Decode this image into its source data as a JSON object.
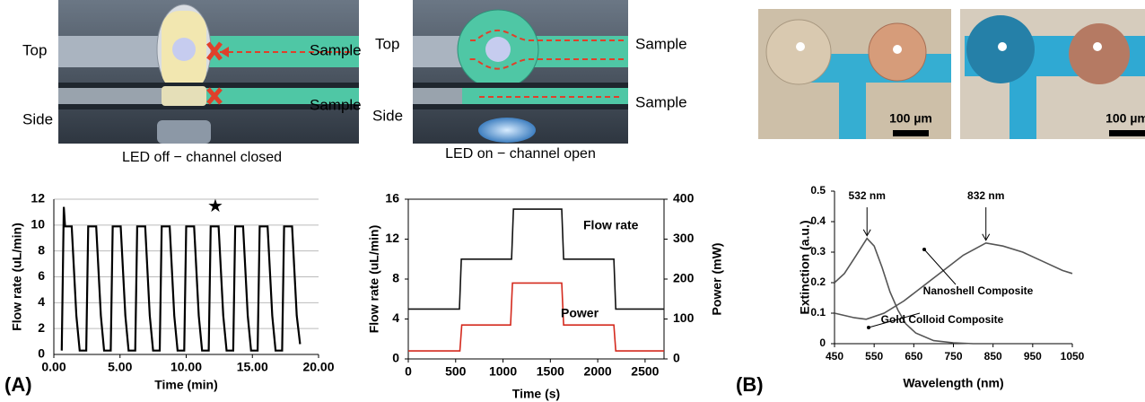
{
  "chart_data": [
    {
      "type": "line",
      "xlabel": "Time (min)",
      "ylabel": "Flow rate (uL/min)",
      "xlim": [
        0,
        20
      ],
      "xticks": [
        {
          "value": 0,
          "label": "0.00"
        },
        {
          "value": 5,
          "label": "5.00"
        },
        {
          "value": 10,
          "label": "10.00"
        },
        {
          "value": 15,
          "label": "15.00"
        },
        {
          "value": 20,
          "label": "20.00"
        }
      ],
      "ylim": [
        0,
        12
      ],
      "yticks": [
        0,
        2,
        4,
        6,
        8,
        10,
        12
      ],
      "grid": true,
      "frame": false,
      "series": [
        {
          "color": "#000000",
          "x": [
            0.6,
            0.75,
            0.85,
            1.35,
            1.7,
            1.95,
            2.45,
            2.6,
            3.2,
            3.55,
            3.8,
            4.3,
            4.45,
            5.05,
            5.4,
            5.65,
            6.15,
            6.3,
            6.9,
            7.25,
            7.5,
            8.0,
            8.15,
            8.75,
            9.1,
            9.35,
            9.85,
            10.0,
            10.6,
            10.95,
            11.2,
            11.7,
            11.85,
            12.45,
            12.8,
            13.05,
            13.55,
            13.7,
            14.3,
            14.65,
            14.9,
            15.4,
            15.55,
            16.15,
            16.5,
            16.75,
            17.25,
            17.4,
            18.0,
            18.35,
            18.6
          ],
          "values": [
            0.3,
            11.4,
            9.9,
            9.9,
            3,
            0.3,
            0.3,
            9.9,
            9.9,
            3,
            0.3,
            0.3,
            9.9,
            9.9,
            3,
            0.3,
            0.3,
            9.9,
            9.9,
            3,
            0.3,
            0.3,
            9.9,
            9.9,
            3,
            0.3,
            0.3,
            9.9,
            9.9,
            3,
            0.3,
            0.3,
            9.9,
            9.9,
            3,
            0.3,
            0.3,
            9.9,
            9.9,
            3,
            0.3,
            0.3,
            9.9,
            9.9,
            3,
            0.3,
            0.3,
            9.9,
            9.9,
            3,
            0.8
          ]
        }
      ],
      "annotations": [
        {
          "text": "★",
          "x": 12.2,
          "y": 11.4
        }
      ]
    },
    {
      "type": "line",
      "xlabel": "Time (s)",
      "ylabel": "Flow rate (uL/min)",
      "y2label": "Power (mW)",
      "xlim": [
        0,
        2700
      ],
      "xticks": [
        0,
        500,
        1000,
        1500,
        2000,
        2500
      ],
      "ylim": [
        0,
        16
      ],
      "yticks": [
        0,
        4,
        8,
        12,
        16
      ],
      "y2lim": [
        0,
        400
      ],
      "y2ticks": [
        0,
        100,
        200,
        300,
        400
      ],
      "grid": false,
      "frame": true,
      "series": [
        {
          "name": "Flow rate",
          "color": "#111111",
          "x": [
            0,
            540,
            560,
            1090,
            1110,
            1620,
            1640,
            2170,
            2190,
            2700
          ],
          "values": [
            5,
            5,
            10,
            10,
            15,
            15,
            10,
            10,
            5,
            5
          ]
        },
        {
          "name": "Power",
          "color": "#d42a1e",
          "axis": "y2",
          "x": [
            0,
            545,
            565,
            1080,
            1100,
            1620,
            1640,
            2170,
            2190,
            2700
          ],
          "values": [
            20,
            20,
            85,
            85,
            190,
            190,
            85,
            85,
            20,
            20
          ]
        }
      ]
    },
    {
      "type": "line",
      "xlabel": "Wavelength (nm)",
      "ylabel": "Extinction (a.u.)",
      "xlim": [
        450,
        1050
      ],
      "xticks": [
        450,
        550,
        650,
        750,
        850,
        950,
        1050
      ],
      "ylim": [
        0,
        0.5
      ],
      "yticks": [
        0,
        0.1,
        0.2,
        0.3,
        0.4,
        0.5
      ],
      "grid": false,
      "frame": false,
      "series": [
        {
          "name": "Nanoshell Composite",
          "color": "#555555",
          "x": [
            450,
            500,
            530,
            575,
            625,
            675,
            725,
            775,
            832,
            875,
            925,
            975,
            1025,
            1050
          ],
          "values": [
            0.1,
            0.085,
            0.08,
            0.1,
            0.14,
            0.19,
            0.24,
            0.29,
            0.33,
            0.32,
            0.3,
            0.27,
            0.24,
            0.23
          ]
        },
        {
          "name": "Gold Colloid Composite",
          "color": "#555555",
          "x": [
            450,
            475,
            500,
            532,
            550,
            570,
            590,
            610,
            630,
            655,
            700,
            750,
            800,
            850
          ],
          "values": [
            0.2,
            0.23,
            0.28,
            0.345,
            0.32,
            0.25,
            0.17,
            0.11,
            0.065,
            0.035,
            0.01,
            0.003,
            0,
            0
          ]
        }
      ],
      "annotations": [
        {
          "text": "532 nm",
          "x": 532,
          "y": 0.345
        },
        {
          "text": "832 nm",
          "x": 832,
          "y": 0.33
        }
      ]
    }
  ],
  "illustrations": {
    "closed": {
      "top": "Top",
      "side": "Side",
      "sample_top": "Sample",
      "sample_side": "Sample",
      "caption": "LED off − channel closed"
    },
    "open": {
      "top": "Top",
      "side": "Side",
      "sample_top": "Sample",
      "sample_side": "Sample",
      "caption": "LED on − channel open"
    }
  },
  "micrographs": {
    "scale_bars": [
      "100 µm",
      "100 µm"
    ]
  },
  "panel_labels": [
    "(A)",
    "(B)"
  ]
}
